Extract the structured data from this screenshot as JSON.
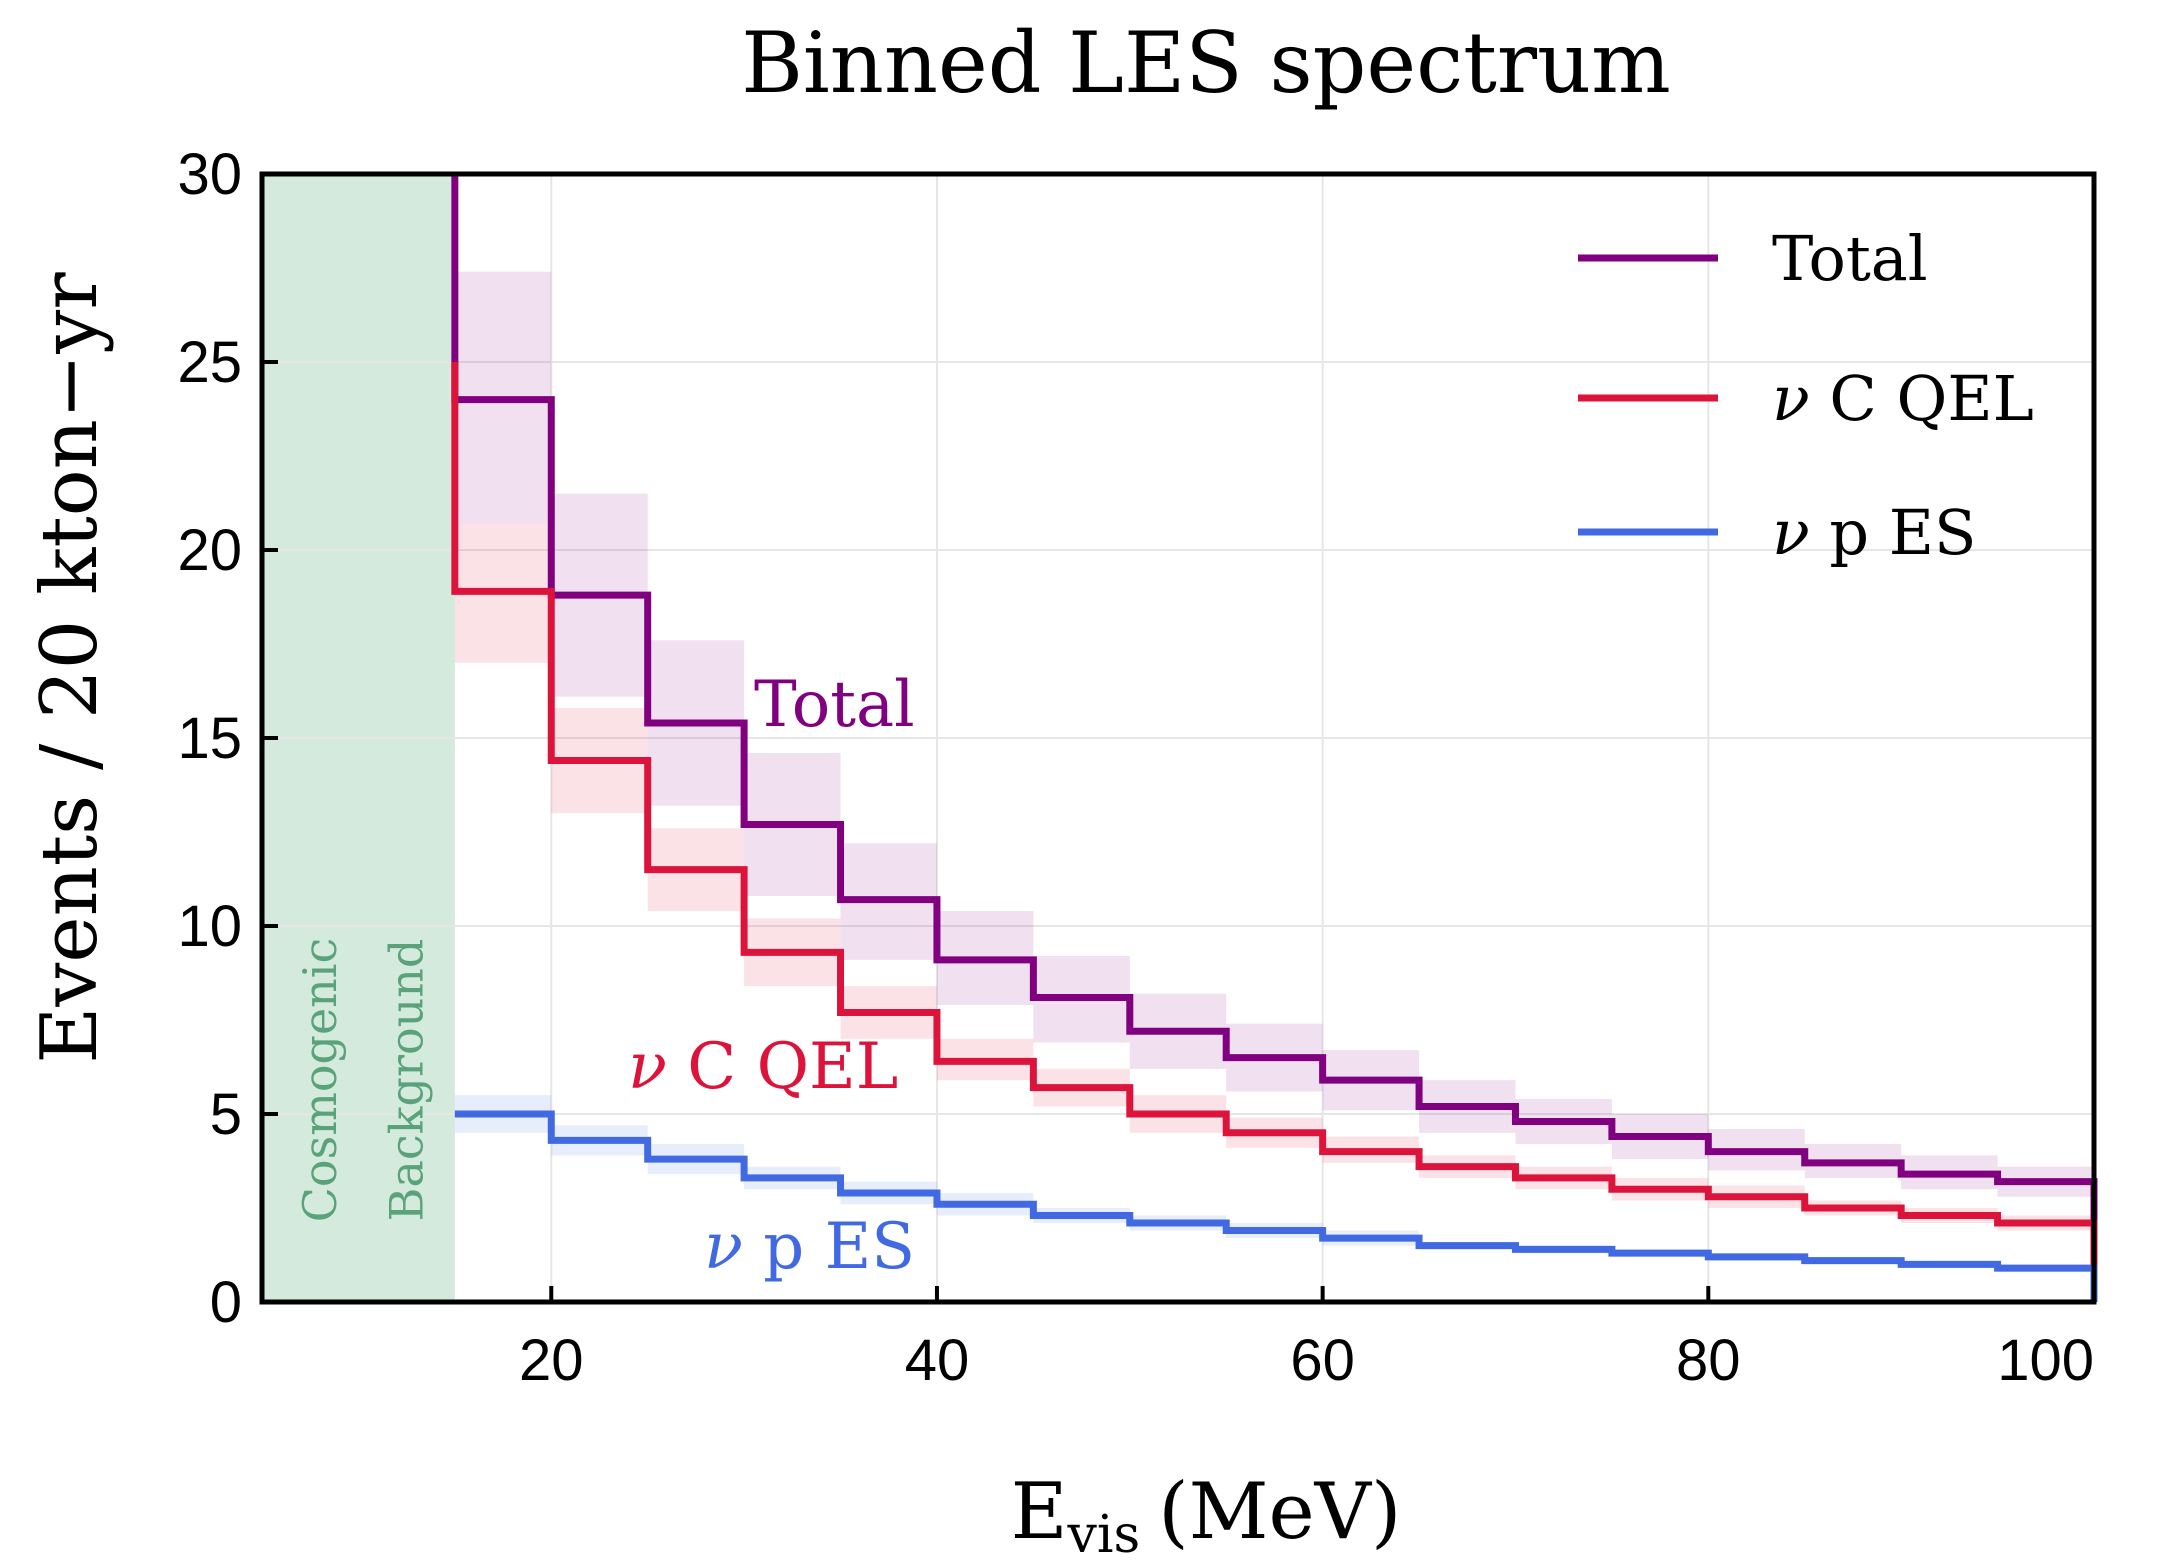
{
  "chart_data": {
    "type": "line",
    "title": "Binned LES spectrum",
    "xlabel_main": "E",
    "xlabel_sub": "vis",
    "xlabel_unit": "(MeV)",
    "ylabel": "Events / 20 kton−yr",
    "xlim": [
      5,
      100
    ],
    "ylim": [
      0,
      30
    ],
    "xticks": [
      20,
      40,
      60,
      80,
      100
    ],
    "yticks": [
      0,
      5,
      10,
      15,
      20,
      25,
      30
    ],
    "grid": true,
    "legend_position": "top-right",
    "background_region": {
      "x_range": [
        5,
        15
      ],
      "label_line1": "Cosmogenic",
      "label_line2": "Background",
      "color": "#a8d5bb"
    },
    "bin_edges": [
      15,
      20,
      25,
      30,
      35,
      40,
      45,
      50,
      55,
      60,
      65,
      70,
      75,
      80,
      85,
      90,
      95,
      100
    ],
    "series": [
      {
        "name": "Total",
        "legend_label": "Total",
        "color": "#800080",
        "values": [
          24.0,
          18.8,
          15.4,
          12.7,
          10.7,
          9.1,
          8.1,
          7.2,
          6.5,
          5.9,
          5.2,
          4.8,
          4.4,
          4.0,
          3.7,
          3.4,
          3.2
        ],
        "band_lower": [
          20.7,
          16.1,
          13.2,
          10.8,
          9.1,
          7.9,
          6.9,
          6.2,
          5.6,
          5.1,
          4.5,
          4.2,
          3.8,
          3.5,
          3.3,
          3.0,
          2.8
        ],
        "band_upper": [
          27.4,
          21.5,
          17.6,
          14.6,
          12.2,
          10.4,
          9.2,
          8.2,
          7.4,
          6.7,
          5.9,
          5.4,
          5.0,
          4.6,
          4.2,
          3.9,
          3.6
        ],
        "annotation": "Total"
      },
      {
        "name": "ν C QEL",
        "legend_label": "C QEL",
        "color": "#dc143c",
        "values": [
          18.9,
          14.4,
          11.5,
          9.3,
          7.7,
          6.4,
          5.7,
          5.0,
          4.5,
          4.0,
          3.6,
          3.3,
          3.0,
          2.8,
          2.5,
          2.3,
          2.1
        ],
        "band_lower": [
          17.0,
          13.0,
          10.4,
          8.4,
          7.0,
          5.9,
          5.2,
          4.5,
          4.1,
          3.7,
          3.3,
          3.0,
          2.7,
          2.5,
          2.3,
          2.1,
          1.9
        ],
        "band_upper": [
          20.7,
          15.8,
          12.6,
          10.2,
          8.4,
          7.0,
          6.2,
          5.5,
          4.9,
          4.4,
          3.9,
          3.6,
          3.3,
          3.1,
          2.7,
          2.5,
          2.3
        ],
        "annotation": "C QEL"
      },
      {
        "name": "ν p ES",
        "legend_label": "p ES",
        "color": "#4169e1",
        "values": [
          5.0,
          4.3,
          3.8,
          3.3,
          2.9,
          2.6,
          2.3,
          2.1,
          1.9,
          1.7,
          1.5,
          1.4,
          1.3,
          1.2,
          1.1,
          1.0,
          0.9
        ],
        "band_lower": [
          4.5,
          3.9,
          3.4,
          3.0,
          2.6,
          2.3,
          2.1,
          1.9,
          1.7,
          1.5,
          1.4,
          1.3,
          1.2,
          1.1,
          1.0,
          0.9,
          0.8
        ],
        "band_upper": [
          5.5,
          4.7,
          4.2,
          3.6,
          3.2,
          2.9,
          2.5,
          2.3,
          2.1,
          1.9,
          1.6,
          1.5,
          1.4,
          1.3,
          1.2,
          1.1,
          1.0
        ],
        "annotation": "p ES"
      }
    ],
    "spike": {
      "x": 15,
      "series_values": [
        30.0,
        25.0
      ]
    },
    "nu_symbol": "ν"
  }
}
